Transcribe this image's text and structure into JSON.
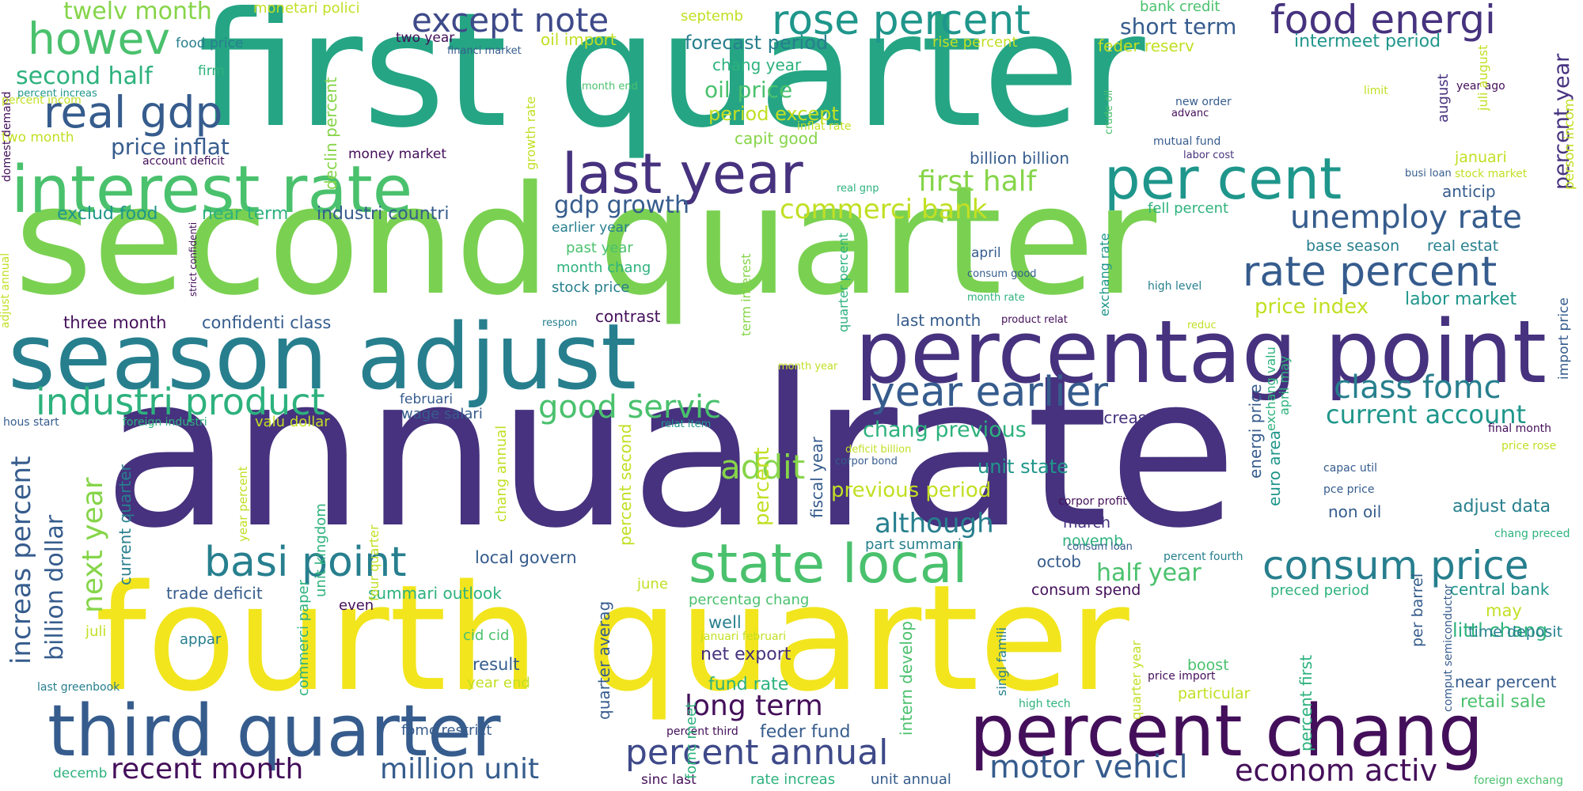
{
  "palette": {
    "purple": "#46327e",
    "darkpurple": "#440f5a",
    "blue": "#365c8d",
    "teal": "#277f8e",
    "teal2": "#1f968b",
    "green": "#2db27d",
    "lime": "#4ac16d",
    "ygreen": "#86d549",
    "yellow": "#c2df23",
    "brightyellow": "#f2e51d"
  },
  "words": [
    {
      "text": "annual"
    },
    {
      "text": "rate"
    },
    {
      "text": "first quarter"
    },
    {
      "text": "second quarter"
    },
    {
      "text": "fourth quarter"
    },
    {
      "text": "season adjust"
    },
    {
      "text": "percentag point"
    },
    {
      "text": "interest rate"
    },
    {
      "text": "third quarter"
    },
    {
      "text": "percent chang"
    },
    {
      "text": "last year"
    },
    {
      "text": "per cent"
    },
    {
      "text": "state local"
    },
    {
      "text": "rose percent"
    },
    {
      "text": "food energi"
    },
    {
      "text": "real gdp"
    },
    {
      "text": "year earlier"
    },
    {
      "text": "howev"
    },
    {
      "text": "basi point"
    },
    {
      "text": "rate percent"
    },
    {
      "text": "consum price"
    },
    {
      "text": "industri product"
    },
    {
      "text": "except note"
    },
    {
      "text": "percent annual"
    },
    {
      "text": "motor vehicl"
    },
    {
      "text": "econom activ"
    },
    {
      "text": "class fomc"
    },
    {
      "text": "unemploy rate"
    },
    {
      "text": "increas percent"
    },
    {
      "text": "good servic"
    },
    {
      "text": "addit"
    },
    {
      "text": "recent month"
    },
    {
      "text": "million unit"
    },
    {
      "text": "commerci bank"
    },
    {
      "text": "first half"
    },
    {
      "text": "current account"
    },
    {
      "text": "long term"
    },
    {
      "text": "next year"
    },
    {
      "text": "billion dollar"
    },
    {
      "text": "although"
    },
    {
      "text": "second half"
    },
    {
      "text": "twelv month"
    },
    {
      "text": "gdp growth"
    },
    {
      "text": "previous period"
    },
    {
      "text": "chang previous"
    },
    {
      "text": "half year"
    },
    {
      "text": "short term"
    },
    {
      "text": "oil price"
    },
    {
      "text": "price inflat"
    },
    {
      "text": "period except"
    },
    {
      "text": "forecast period"
    },
    {
      "text": "intermeet period"
    },
    {
      "text": "percent year"
    },
    {
      "text": "unit state"
    },
    {
      "text": "price index"
    },
    {
      "text": "labor market"
    },
    {
      "text": "adjust data"
    },
    {
      "text": "littl chang"
    },
    {
      "text": "retail sale"
    },
    {
      "text": "central bank"
    },
    {
      "text": "exclud food"
    },
    {
      "text": "near term"
    },
    {
      "text": "industri countri"
    },
    {
      "text": "confidenti class"
    },
    {
      "text": "three month"
    },
    {
      "text": "local govern"
    },
    {
      "text": "trade deficit"
    },
    {
      "text": "summari outlook"
    },
    {
      "text": "net export"
    },
    {
      "text": "fund rate"
    },
    {
      "text": "feder fund"
    },
    {
      "text": "percent"
    },
    {
      "text": "chang year"
    },
    {
      "text": "capit good"
    },
    {
      "text": "billion billion"
    },
    {
      "text": "oil import"
    },
    {
      "text": "septemb"
    },
    {
      "text": "monetari polici"
    },
    {
      "text": "bank credit"
    },
    {
      "text": "rise percent"
    },
    {
      "text": "feder reserv"
    },
    {
      "text": "fell percent"
    },
    {
      "text": "base season"
    },
    {
      "text": "real estat"
    },
    {
      "text": "anticip"
    },
    {
      "text": "januari"
    },
    {
      "text": "past year"
    },
    {
      "text": "month chang"
    },
    {
      "text": "stock price"
    },
    {
      "text": "earlier year"
    },
    {
      "text": "contrast"
    },
    {
      "text": "last month"
    },
    {
      "text": "price increas"
    },
    {
      "text": "wage salari"
    },
    {
      "text": "valu dollar"
    },
    {
      "text": "februari"
    },
    {
      "text": "octob"
    },
    {
      "text": "novemb"
    },
    {
      "text": "march"
    },
    {
      "text": "consum spend"
    },
    {
      "text": "part summari"
    },
    {
      "text": "non oil"
    },
    {
      "text": "may"
    },
    {
      "text": "time deposit"
    },
    {
      "text": "near percent"
    },
    {
      "text": "per barrel"
    },
    {
      "text": "preced period"
    },
    {
      "text": "boost"
    },
    {
      "text": "particular"
    },
    {
      "text": "well"
    },
    {
      "text": "result"
    },
    {
      "text": "year end"
    },
    {
      "text": "cid cid"
    },
    {
      "text": "june"
    },
    {
      "text": "appar"
    },
    {
      "text": "even"
    },
    {
      "text": "juli"
    },
    {
      "text": "percentag chang"
    },
    {
      "text": "fomc restrict"
    },
    {
      "text": "rate increas"
    },
    {
      "text": "unit annual"
    },
    {
      "text": "sinc last"
    },
    {
      "text": "decemb"
    },
    {
      "text": "last greenbook"
    },
    {
      "text": "foreign exchang"
    },
    {
      "text": "two year"
    },
    {
      "text": "food price"
    },
    {
      "text": "firm"
    },
    {
      "text": "financi market"
    },
    {
      "text": "money market"
    },
    {
      "text": "two month"
    },
    {
      "text": "percent increas"
    },
    {
      "text": "account deficit"
    },
    {
      "text": "month end"
    },
    {
      "text": "inflat rate"
    },
    {
      "text": "real gnp"
    },
    {
      "text": "crude oil"
    },
    {
      "text": "new order"
    },
    {
      "text": "advanc"
    },
    {
      "text": "mutual fund"
    },
    {
      "text": "labor cost"
    },
    {
      "text": "limit"
    },
    {
      "text": "year ago"
    },
    {
      "text": "stock market"
    },
    {
      "text": "busi loan"
    },
    {
      "text": "april"
    },
    {
      "text": "consum good"
    },
    {
      "text": "month rate"
    },
    {
      "text": "high level"
    },
    {
      "text": "product relat"
    },
    {
      "text": "reduc"
    },
    {
      "text": "respon"
    },
    {
      "text": "month year"
    },
    {
      "text": "relat item"
    },
    {
      "text": "deficit billion"
    },
    {
      "text": "corpor bond"
    },
    {
      "text": "corpor profit"
    },
    {
      "text": "consum loan"
    },
    {
      "text": "capac util"
    },
    {
      "text": "pce price"
    },
    {
      "text": "chang preced"
    },
    {
      "text": "final month"
    },
    {
      "text": "price rose"
    },
    {
      "text": "percent fourth"
    },
    {
      "text": "price import"
    },
    {
      "text": "high tech"
    },
    {
      "text": "hous start"
    },
    {
      "text": "foreign industri"
    },
    {
      "text": "januari februari"
    },
    {
      "text": "percent third"
    },
    {
      "text": "domest demand"
    },
    {
      "text": "august"
    },
    {
      "text": "percent incom"
    },
    {
      "text": "person incom"
    },
    {
      "text": "import price"
    },
    {
      "text": "juli august"
    },
    {
      "text": "april may"
    },
    {
      "text": "exchang valu"
    },
    {
      "text": "exchang rate"
    },
    {
      "text": "energi price"
    },
    {
      "text": "euro area"
    },
    {
      "text": "quarter percent"
    },
    {
      "text": "term interest"
    },
    {
      "text": "fiscal year"
    },
    {
      "text": "percent second"
    },
    {
      "text": "chang annual"
    },
    {
      "text": "quarter averag"
    },
    {
      "text": "fomc meet"
    },
    {
      "text": "percent first"
    },
    {
      "text": "intern develop"
    },
    {
      "text": "singl famili"
    },
    {
      "text": "quarter year"
    },
    {
      "text": "comput semiconductor"
    },
    {
      "text": "commerci paper"
    },
    {
      "text": "unit kingdom"
    },
    {
      "text": "current quarter"
    },
    {
      "text": "year percent"
    },
    {
      "text": "four quarter"
    },
    {
      "text": "growth rate"
    },
    {
      "text": "declin percent"
    },
    {
      "text": "adjust annual"
    },
    {
      "text": "strict confidenti"
    }
  ]
}
